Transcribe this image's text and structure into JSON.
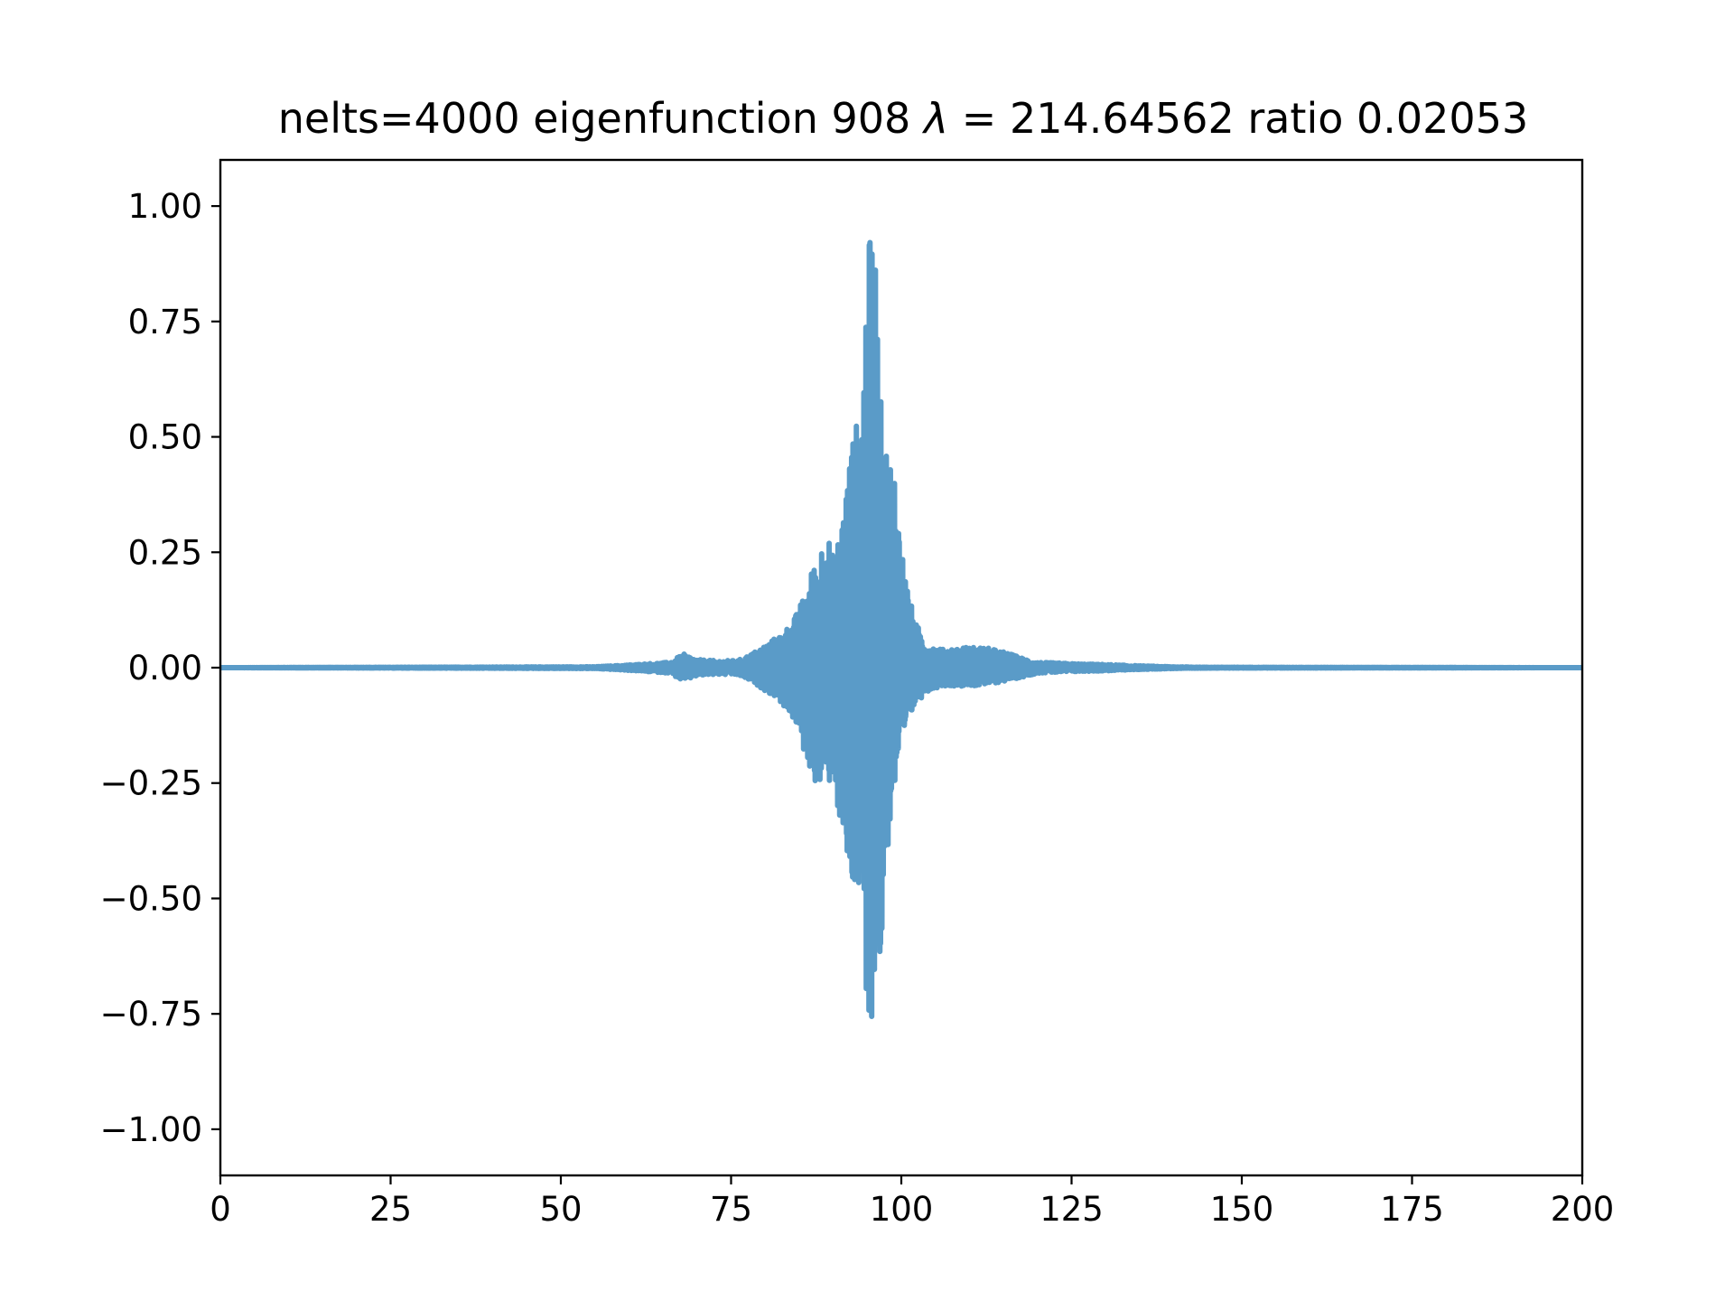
{
  "chart_data": {
    "type": "line",
    "title": "nelts=4000  eigenfunction 908  λ = 214.64562 ratio 0.02053",
    "title_parts": {
      "prefix": "nelts=4000  eigenfunction 908  ",
      "lambda_symbol": "λ",
      "equals": " = ",
      "suffix": "214.64562 ratio 0.02053"
    },
    "xlabel": "",
    "ylabel": "",
    "xlim": [
      0,
      200
    ],
    "ylim": [
      -1.1,
      1.1
    ],
    "x_ticks": [
      0,
      25,
      50,
      75,
      100,
      125,
      150,
      175,
      200
    ],
    "x_tick_labels": [
      "0",
      "25",
      "50",
      "75",
      "100",
      "125",
      "150",
      "175",
      "200"
    ],
    "y_ticks": [
      1.0,
      0.75,
      0.5,
      0.25,
      0.0,
      -0.25,
      -0.5,
      -0.75,
      -1.0
    ],
    "y_tick_labels": [
      "1.00",
      "0.75",
      "0.50",
      "0.25",
      "0.00",
      "−0.25",
      "−0.50",
      "−0.75",
      "−1.00"
    ],
    "grid": false,
    "legend": "none",
    "colors": {
      "series": "#5a9bc8",
      "axes": "#000000",
      "background": "#ffffff"
    },
    "series": [
      {
        "style": "oscillating-line",
        "upper_envelope": [
          [
            0,
            0.0
          ],
          [
            55,
            0.002
          ],
          [
            60,
            0.006
          ],
          [
            63,
            0.009
          ],
          [
            66,
            0.012
          ],
          [
            68,
            0.03
          ],
          [
            70,
            0.018
          ],
          [
            73,
            0.015
          ],
          [
            76,
            0.016
          ],
          [
            78,
            0.03
          ],
          [
            80,
            0.05
          ],
          [
            82,
            0.07
          ],
          [
            84,
            0.1
          ],
          [
            85,
            0.13
          ],
          [
            86,
            0.17
          ],
          [
            87,
            0.22
          ],
          [
            88,
            0.26
          ],
          [
            89,
            0.31
          ],
          [
            90,
            0.24
          ],
          [
            91,
            0.3
          ],
          [
            92,
            0.42
          ],
          [
            93,
            0.52
          ],
          [
            94,
            0.55
          ],
          [
            95,
            0.89
          ],
          [
            96,
            1.0
          ],
          [
            97,
            0.58
          ],
          [
            98,
            0.47
          ],
          [
            99,
            0.45
          ],
          [
            100,
            0.27
          ],
          [
            101,
            0.17
          ],
          [
            102,
            0.1
          ],
          [
            104,
            0.05
          ],
          [
            106,
            0.04
          ],
          [
            109,
            0.045
          ],
          [
            112,
            0.045
          ],
          [
            115,
            0.035
          ],
          [
            118,
            0.02
          ],
          [
            120,
            0.012
          ],
          [
            125,
            0.009
          ],
          [
            130,
            0.007
          ],
          [
            135,
            0.004
          ],
          [
            140,
            0.002
          ],
          [
            145,
            0.001
          ],
          [
            200,
            0.0
          ]
        ],
        "lower_envelope": [
          [
            0,
            0.0
          ],
          [
            55,
            -0.002
          ],
          [
            60,
            -0.006
          ],
          [
            63,
            -0.009
          ],
          [
            66,
            -0.012
          ],
          [
            68,
            -0.03
          ],
          [
            70,
            -0.018
          ],
          [
            73,
            -0.015
          ],
          [
            76,
            -0.016
          ],
          [
            78,
            -0.03
          ],
          [
            80,
            -0.05
          ],
          [
            82,
            -0.07
          ],
          [
            84,
            -0.11
          ],
          [
            85,
            -0.15
          ],
          [
            86,
            -0.2
          ],
          [
            87,
            -0.24
          ],
          [
            88,
            -0.26
          ],
          [
            89,
            -0.28
          ],
          [
            90,
            -0.22
          ],
          [
            91,
            -0.36
          ],
          [
            92,
            -0.45
          ],
          [
            93,
            -0.5
          ],
          [
            94,
            -0.51
          ],
          [
            95,
            -0.9
          ],
          [
            96,
            -0.68
          ],
          [
            97,
            -0.66
          ],
          [
            98,
            -0.4
          ],
          [
            99,
            -0.27
          ],
          [
            100,
            -0.2
          ],
          [
            101,
            -0.13
          ],
          [
            102,
            -0.08
          ],
          [
            104,
            -0.05
          ],
          [
            106,
            -0.04
          ],
          [
            109,
            -0.04
          ],
          [
            112,
            -0.04
          ],
          [
            115,
            -0.03
          ],
          [
            118,
            -0.02
          ],
          [
            120,
            -0.012
          ],
          [
            125,
            -0.009
          ],
          [
            130,
            -0.007
          ],
          [
            135,
            -0.004
          ],
          [
            140,
            -0.002
          ],
          [
            145,
            -0.001
          ],
          [
            200,
            0.0
          ]
        ]
      }
    ]
  }
}
